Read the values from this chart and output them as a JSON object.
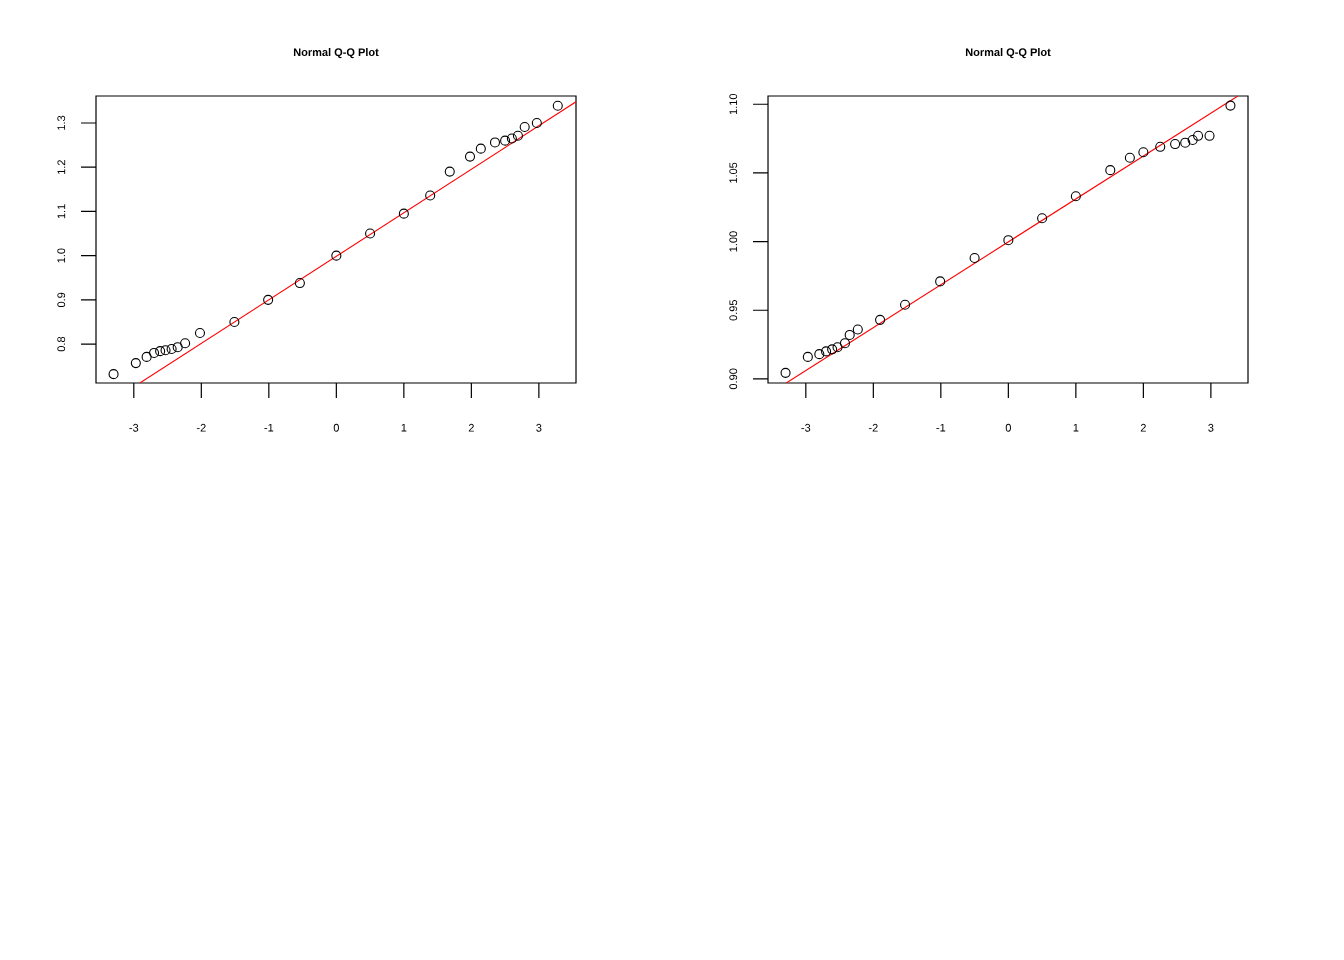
{
  "chart_data": [
    {
      "type": "scatter",
      "title": "Normal Q-Q Plot",
      "xlim": [
        -3.56,
        3.55
      ],
      "ylim": [
        0.712,
        1.361
      ],
      "xticks": [
        -3,
        -2,
        -1,
        0,
        1,
        2,
        3
      ],
      "yticks": [
        {
          "value": 0.8,
          "label": "0.8"
        },
        {
          "value": 0.9,
          "label": "0.9"
        },
        {
          "value": 1.0,
          "label": "1.0"
        },
        {
          "value": 1.1,
          "label": "1.1"
        },
        {
          "value": 1.2,
          "label": "1.2"
        },
        {
          "value": 1.3,
          "label": "1.3"
        }
      ],
      "series": [
        {
          "marker": "circle",
          "color": "#000000",
          "x": [
            -3.3,
            -2.97,
            -2.81,
            -2.7,
            -2.61,
            -2.53,
            -2.44,
            -2.35,
            -2.24,
            -2.02,
            -1.51,
            -1.01,
            -0.54,
            0,
            0.5,
            1.0,
            1.39,
            1.68,
            1.98,
            2.14,
            2.35,
            2.5,
            2.6,
            2.69,
            2.79,
            2.97,
            3.28
          ],
          "values": [
            0.732,
            0.757,
            0.771,
            0.78,
            0.784,
            0.786,
            0.789,
            0.793,
            0.802,
            0.825,
            0.85,
            0.9,
            0.938,
            1.0,
            1.05,
            1.095,
            1.136,
            1.19,
            1.224,
            1.242,
            1.256,
            1.26,
            1.265,
            1.271,
            1.291,
            1.3,
            1.339
          ]
        },
        {
          "type": "line",
          "marker": "none",
          "color": "#ff0000",
          "x": [
            -2.91,
            3.55
          ],
          "values": [
            0.712,
            1.348
          ]
        }
      ]
    },
    {
      "type": "scatter",
      "title": "Normal Q-Q Plot",
      "xlim": [
        -3.56,
        3.55
      ],
      "ylim": [
        0.897,
        1.106
      ],
      "xticks": [
        -3,
        -2,
        -1,
        0,
        1,
        2,
        3
      ],
      "yticks": [
        {
          "value": 0.9,
          "label": "0.90"
        },
        {
          "value": 0.95,
          "label": "0.95"
        },
        {
          "value": 1.0,
          "label": "1.00"
        },
        {
          "value": 1.05,
          "label": "1.05"
        },
        {
          "value": 1.1,
          "label": "1.10"
        }
      ],
      "series": [
        {
          "marker": "circle",
          "color": "#000000",
          "x": [
            -3.3,
            -2.97,
            -2.8,
            -2.7,
            -2.61,
            -2.53,
            -2.42,
            -2.35,
            -2.23,
            -1.9,
            -1.53,
            -1.01,
            -0.5,
            0,
            0.5,
            1.0,
            1.51,
            1.8,
            2.0,
            2.25,
            2.47,
            2.62,
            2.73,
            2.81,
            2.98,
            3.29
          ],
          "values": [
            0.9044,
            0.916,
            0.918,
            0.92,
            0.9215,
            0.923,
            0.926,
            0.932,
            0.936,
            0.943,
            0.954,
            0.971,
            0.988,
            1.001,
            1.017,
            1.033,
            1.052,
            1.061,
            1.065,
            1.069,
            1.071,
            1.072,
            1.074,
            1.077,
            1.077,
            1.099
          ]
        },
        {
          "type": "line",
          "marker": "none",
          "color": "#ff0000",
          "x": [
            -3.29,
            3.4
          ],
          "values": [
            0.897,
            1.106
          ]
        }
      ]
    }
  ]
}
